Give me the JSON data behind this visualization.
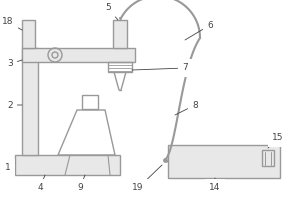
{
  "bg_color": "#ffffff",
  "line_color": "#999999",
  "line_width": 1.0,
  "font_size": 6.5,
  "label_color": "#444444"
}
